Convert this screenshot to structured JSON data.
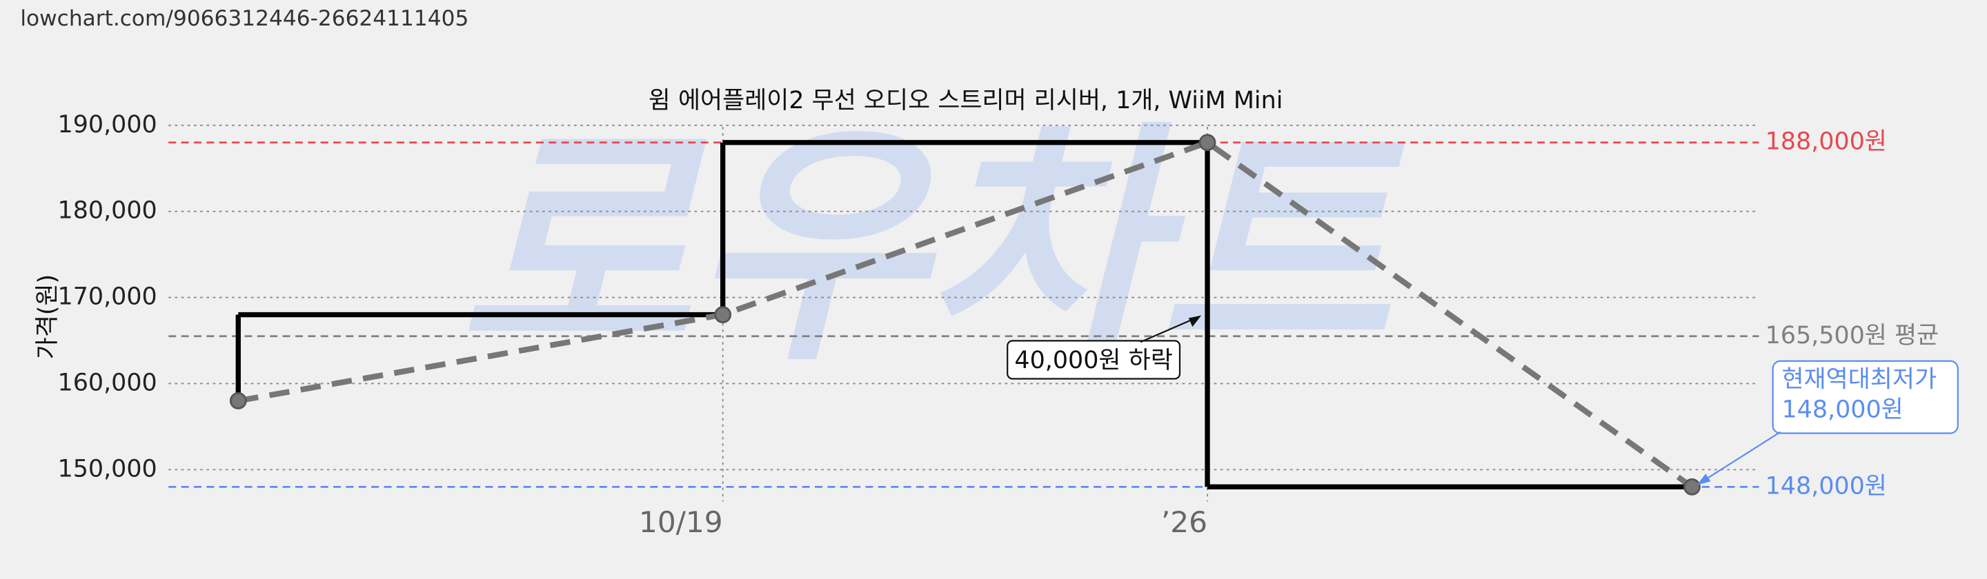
{
  "url": "lowchart.com/9066312446-26624111405",
  "watermark": "로우차트",
  "chart_data": {
    "type": "step-line",
    "title": "윔 에어플레이2 무선 오디오 스트리머 리시버, 1개, WiiM Mini",
    "y_label": "가격(원)",
    "categories": [
      null,
      "10/19",
      "’26",
      null
    ],
    "series": [
      {
        "color": "#000000",
        "values": [
          158000,
          168000,
          188000,
          148000
        ]
      }
    ],
    "trend_color": "#777777",
    "ylim": [
      146000,
      191000
    ],
    "yticks": [
      {
        "value": 150000,
        "label": "150,000"
      },
      {
        "value": 160000,
        "label": "160,000"
      },
      {
        "value": 170000,
        "label": "170,000"
      },
      {
        "value": 180000,
        "label": "180,000"
      },
      {
        "value": 190000,
        "label": "190,000"
      }
    ],
    "grid": true,
    "reference_lines": [
      {
        "value": 188000,
        "label": "188,000원",
        "color": "#e8474f"
      },
      {
        "value": 165500,
        "label": "165,500원 평균",
        "color": "#808080"
      },
      {
        "value": 148000,
        "label": "148,000원",
        "color": "#5b8def"
      }
    ],
    "annotations": [
      {
        "text": "40,000원 하락"
      },
      {
        "text": [
          "현재역대최저가",
          "148,000원"
        ],
        "color": "#5b8def"
      }
    ]
  }
}
